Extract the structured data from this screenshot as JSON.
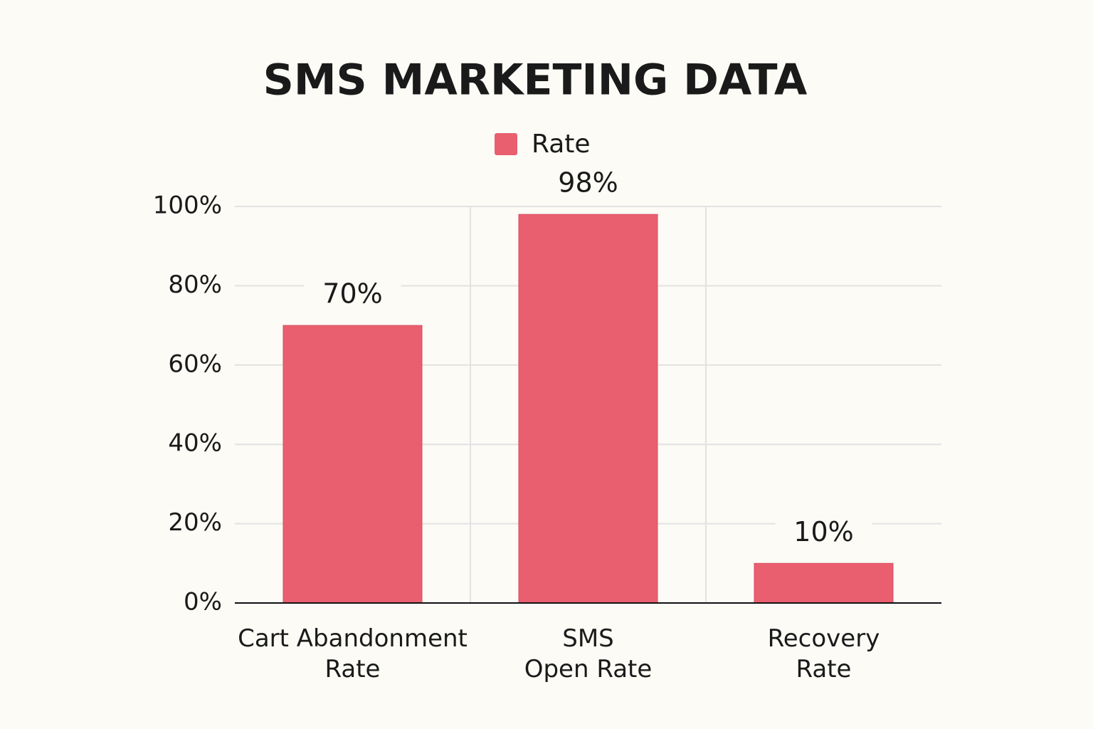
{
  "chart_data": {
    "type": "bar",
    "title": "SMS MARKETING DATA",
    "categories": [
      "Cart Abandonment\nRate",
      "SMS\nOpen Rate",
      "Recovery\nRate"
    ],
    "series": [
      {
        "name": "Rate",
        "color": "#e95f70",
        "values": [
          70,
          98,
          10
        ],
        "value_labels": [
          "70%",
          "98%",
          "10%"
        ]
      }
    ],
    "ylim": [
      0,
      100
    ],
    "yticks": [
      {
        "value": 0,
        "label": "0%"
      },
      {
        "value": 20,
        "label": "20%"
      },
      {
        "value": 40,
        "label": "40%"
      },
      {
        "value": 60,
        "label": "60%"
      },
      {
        "value": 80,
        "label": "80%"
      },
      {
        "value": 100,
        "label": "100%"
      }
    ],
    "grid": true,
    "legend": "top"
  }
}
